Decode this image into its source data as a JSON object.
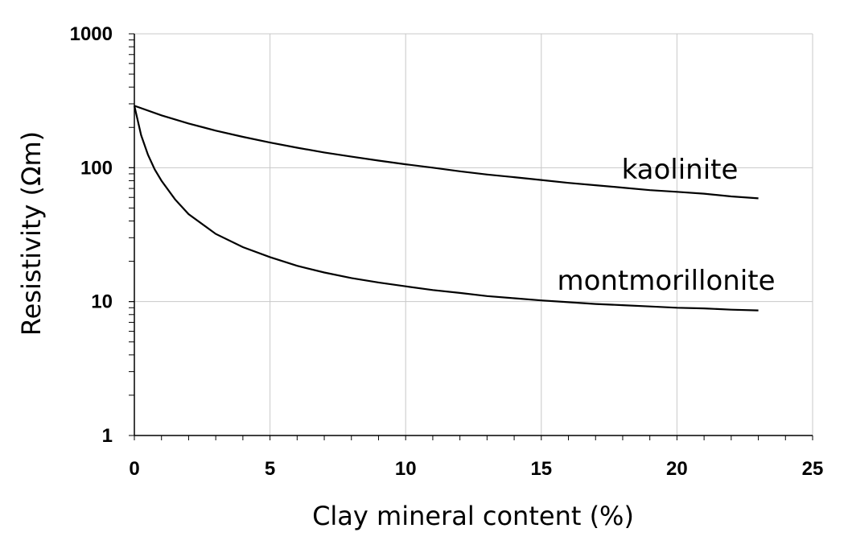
{
  "chart_data": {
    "type": "line",
    "xlabel": "Clay mineral content (%)",
    "ylabel": "Resistivity (Ωm)",
    "xlim": [
      0,
      25
    ],
    "ylim": [
      1,
      1000
    ],
    "y_scale": "log",
    "grid": true,
    "x_ticks": [
      "0",
      "5",
      "10",
      "15",
      "20",
      "25"
    ],
    "y_ticks": [
      "1",
      "10",
      "100",
      "1000"
    ],
    "series": [
      {
        "name": "kaolinite",
        "x": [
          0,
          1,
          2,
          3,
          4,
          5,
          6,
          7,
          8,
          9,
          10,
          11,
          12,
          13,
          14,
          15,
          16,
          17,
          18,
          19,
          20,
          21,
          22,
          23
        ],
        "y": [
          290,
          246,
          214,
          189,
          170,
          154,
          141,
          130,
          121,
          113,
          106,
          100,
          94,
          89,
          85,
          81,
          77,
          74,
          71,
          68,
          66,
          64,
          61,
          59
        ]
      },
      {
        "name": "montmorillonite",
        "x": [
          0,
          0.25,
          0.5,
          0.75,
          1,
          1.5,
          2,
          3,
          4,
          5,
          6,
          7,
          8,
          9,
          10,
          11,
          12,
          13,
          14,
          15,
          16,
          17,
          18,
          19,
          20,
          21,
          22,
          23
        ],
        "y": [
          290,
          175,
          125,
          97,
          80,
          58,
          45,
          32,
          25.5,
          21.5,
          18.5,
          16.5,
          15,
          13.9,
          13,
          12.2,
          11.6,
          11,
          10.6,
          10.2,
          9.9,
          9.6,
          9.4,
          9.2,
          9,
          8.9,
          8.7,
          8.6
        ]
      }
    ]
  }
}
